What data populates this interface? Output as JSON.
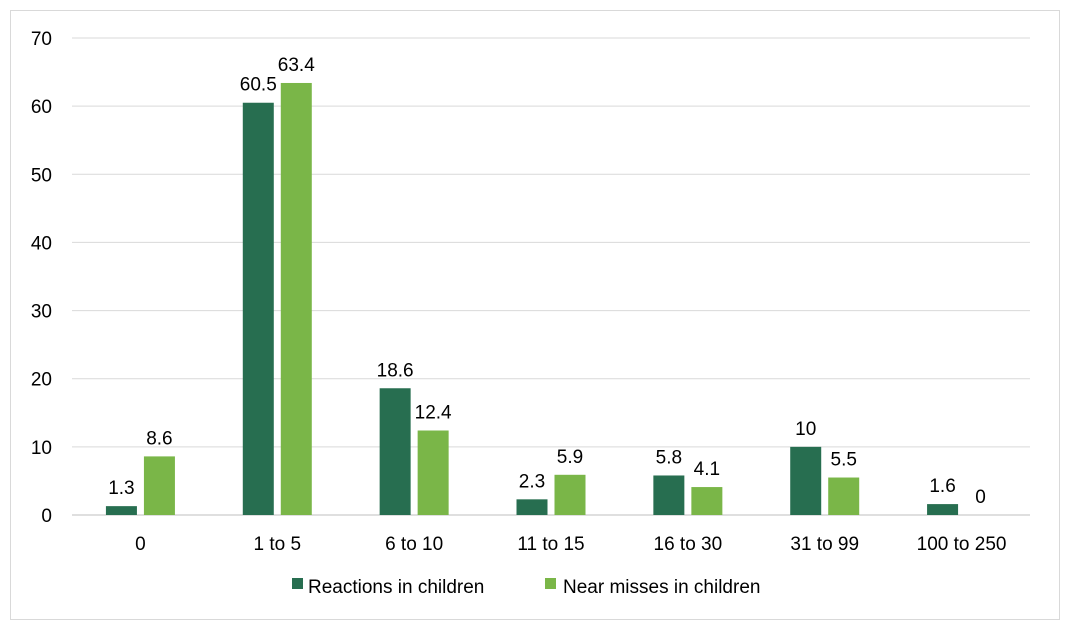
{
  "chart_data": {
    "type": "bar",
    "categories": [
      "0",
      "1 to 5",
      "6 to 10",
      "11 to 15",
      "16 to 30",
      "31 to 99",
      "100 to 250"
    ],
    "series": [
      {
        "name": "Reactions in children",
        "color": "#276e50",
        "values": [
          1.3,
          60.5,
          18.6,
          2.3,
          5.8,
          10,
          1.6
        ],
        "labels": [
          "1.3",
          "60.5",
          "18.6",
          "2.3",
          "5.8",
          "10",
          "1.6"
        ]
      },
      {
        "name": "Near misses in children",
        "color": "#7ab648",
        "values": [
          8.6,
          63.4,
          12.4,
          5.9,
          4.1,
          5.5,
          0
        ],
        "labels": [
          "8.6",
          "63.4",
          "12.4",
          "5.9",
          "4.1",
          "5.5",
          "0"
        ]
      }
    ],
    "ylim": [
      0,
      70
    ],
    "yticks": [
      "0",
      "10",
      "20",
      "30",
      "40",
      "50",
      "60",
      "70"
    ],
    "grid": true,
    "legend_position": "bottom",
    "gridline_color": "#d9d9d9",
    "axis_color": "#bfbfbf"
  }
}
